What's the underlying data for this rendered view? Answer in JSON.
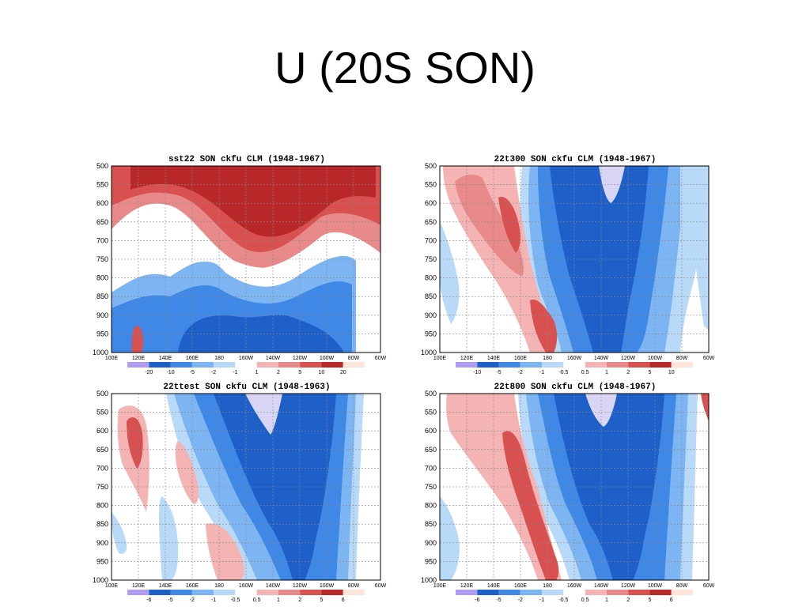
{
  "slide": {
    "title": "U (20S SON)"
  },
  "colors": {
    "neg": {
      "-20": "#b09cf0",
      "-10": "#1f5fc8",
      "-5": "#3f88e6",
      "-2": "#7cb5f2",
      "-1": "#b8daf8",
      "-0.5": "#b8daf8",
      "-6": "#b09cf0"
    },
    "palette": {
      "lav": "#d8d6f4",
      "dblue": "#1f5fc8",
      "blue": "#3f88e6",
      "lblue": "#7cb5f2",
      "vlblue": "#b8daf8",
      "vlred": "#f4b4b4",
      "lred": "#e88a8a",
      "red": "#d95050",
      "dred": "#b82828",
      "vdred": "#a01818"
    }
  },
  "chart_data": [
    {
      "type": "heatmap",
      "title": "sst22 SON ckfu CLM (1948-1967)",
      "x_ticks": [
        "100E",
        "120E",
        "140E",
        "160E",
        "180",
        "160W",
        "140W",
        "120W",
        "100W",
        "80W",
        "60W"
      ],
      "y_ticks": [
        "500",
        "550",
        "600",
        "650",
        "700",
        "750",
        "800",
        "850",
        "900",
        "950",
        "1000"
      ],
      "ylim": [
        500,
        1000
      ],
      "grid": true,
      "colorbar": {
        "labels": [
          "-20",
          "-10",
          "-5",
          "-2",
          "-1",
          "1",
          "2",
          "5",
          "10",
          "20"
        ],
        "colors": [
          "#b09cf0",
          "#1f5fc8",
          "#3f88e6",
          "#7cb5f2",
          "#b8daf8",
          "#ffffff",
          "#f4b4b4",
          "#e88a8a",
          "#d95050",
          "#b82828",
          "#ffe4dc"
        ]
      }
    },
    {
      "type": "heatmap",
      "title": "22t300 SON ckfu CLM (1948-1967)",
      "x_ticks": [
        "100E",
        "120E",
        "140E",
        "160E",
        "180",
        "160W",
        "140W",
        "120W",
        "100W",
        "80W",
        "60W"
      ],
      "y_ticks": [
        "500",
        "550",
        "600",
        "650",
        "700",
        "750",
        "800",
        "850",
        "900",
        "950",
        "1000"
      ],
      "ylim": [
        500,
        1000
      ],
      "grid": true,
      "colorbar": {
        "labels": [
          "-10",
          "-5",
          "-2",
          "-1",
          "-0.5",
          "0.5",
          "1",
          "2",
          "5",
          "10"
        ],
        "colors": [
          "#b09cf0",
          "#1f5fc8",
          "#3f88e6",
          "#7cb5f2",
          "#b8daf8",
          "#ffffff",
          "#f4b4b4",
          "#e88a8a",
          "#d95050",
          "#b82828",
          "#ffe4dc"
        ]
      }
    },
    {
      "type": "heatmap",
      "title": "22ttest SON ckfu CLM (1948-1963)",
      "x_ticks": [
        "100E",
        "120E",
        "140E",
        "160E",
        "180",
        "160W",
        "140W",
        "120W",
        "100W",
        "80W",
        "60W"
      ],
      "y_ticks": [
        "500",
        "550",
        "600",
        "650",
        "700",
        "750",
        "800",
        "850",
        "900",
        "950",
        "1000"
      ],
      "ylim": [
        500,
        1000
      ],
      "grid": true,
      "colorbar": {
        "labels": [
          "-6",
          "-5",
          "-2",
          "-1",
          "-0.5",
          "0.5",
          "1",
          "2",
          "5",
          "6"
        ],
        "colors": [
          "#b09cf0",
          "#1f5fc8",
          "#3f88e6",
          "#7cb5f2",
          "#b8daf8",
          "#ffffff",
          "#f4b4b4",
          "#e88a8a",
          "#d95050",
          "#b82828",
          "#ffe4dc"
        ]
      }
    },
    {
      "type": "heatmap",
      "title": "22t800 SON ckfu CLM (1948-1967)",
      "x_ticks": [
        "100E",
        "120E",
        "140E",
        "160E",
        "180",
        "160W",
        "140W",
        "120W",
        "100W",
        "80W",
        "60W"
      ],
      "y_ticks": [
        "500",
        "550",
        "600",
        "650",
        "700",
        "750",
        "800",
        "850",
        "900",
        "950",
        "1000"
      ],
      "ylim": [
        500,
        1000
      ],
      "grid": true,
      "colorbar": {
        "labels": [
          "-6",
          "-5",
          "-2",
          "-1",
          "-0.5",
          "0.5",
          "1",
          "2",
          "5",
          "6"
        ],
        "colors": [
          "#b09cf0",
          "#1f5fc8",
          "#3f88e6",
          "#7cb5f2",
          "#b8daf8",
          "#ffffff",
          "#f4b4b4",
          "#e88a8a",
          "#d95050",
          "#b82828",
          "#ffe4dc"
        ]
      }
    }
  ]
}
